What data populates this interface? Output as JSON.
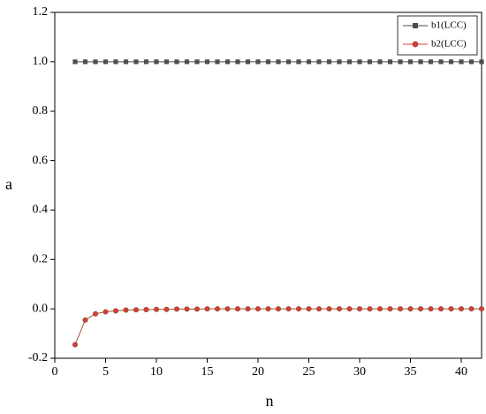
{
  "chart_data": {
    "type": "line",
    "x_label": "n",
    "y_label": "a",
    "x": [
      2,
      3,
      4,
      5,
      6,
      7,
      8,
      9,
      10,
      11,
      12,
      13,
      14,
      15,
      16,
      17,
      18,
      19,
      20,
      21,
      22,
      23,
      24,
      25,
      26,
      27,
      28,
      29,
      30,
      31,
      32,
      33,
      34,
      35,
      36,
      37,
      38,
      39,
      40,
      41,
      42
    ],
    "series": [
      {
        "name": "b1(LCC)",
        "color": "#4d4d4d",
        "marker": "square",
        "values": [
          1,
          1,
          1,
          1,
          1,
          1,
          1,
          1,
          1,
          1,
          1,
          1,
          1,
          1,
          1,
          1,
          1,
          1,
          1,
          1,
          1,
          1,
          1,
          1,
          1,
          1,
          1,
          1,
          1,
          1,
          1,
          1,
          1,
          1,
          1,
          1,
          1,
          1,
          1,
          1,
          1
        ]
      },
      {
        "name": "b2(LCC)",
        "color": "#e03a3a",
        "marker": "circle",
        "values": [
          -0.145,
          -0.045,
          -0.02,
          -0.012,
          -0.008,
          -0.005,
          -0.004,
          -0.003,
          -0.002,
          -0.002,
          -0.001,
          -0.001,
          -0.001,
          0,
          0,
          0,
          0,
          0,
          0,
          0,
          0,
          0,
          0,
          0,
          0,
          0,
          0,
          0,
          0,
          0,
          0,
          0,
          0,
          0,
          0,
          0,
          0,
          0,
          0,
          0,
          0
        ]
      }
    ],
    "xlim": [
      0,
      42
    ],
    "xticks": [
      0,
      5,
      10,
      15,
      20,
      25,
      30,
      35,
      40
    ],
    "ylim": [
      -0.2,
      1.2
    ],
    "yticks": [
      -0.2,
      {
        "value": 0,
        "label": "0.0"
      },
      0.2,
      0.4,
      0.6,
      0.8,
      {
        "value": 1,
        "label": "1.0"
      },
      1.2
    ],
    "legend": "top-right",
    "grid": false
  }
}
